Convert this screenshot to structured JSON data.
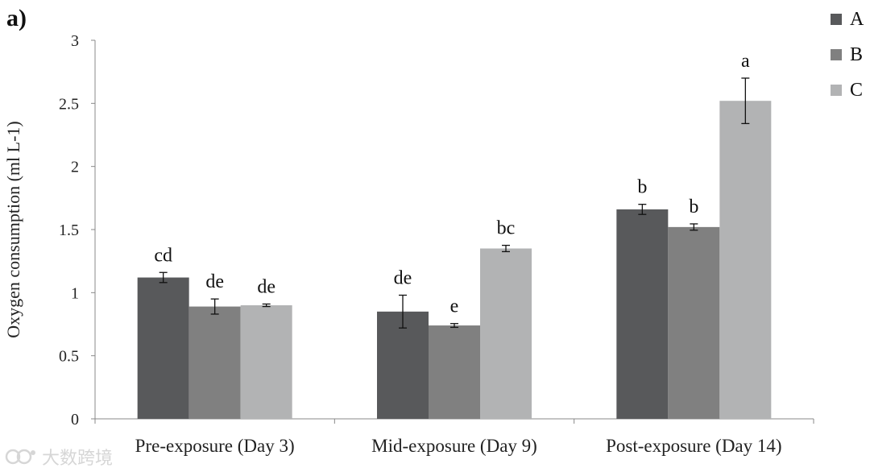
{
  "panel_label": "a)",
  "chart_data": {
    "type": "bar",
    "title": "",
    "xlabel": "",
    "ylabel": "Oxygen consumption (ml L-1)",
    "ylim": [
      0,
      3
    ],
    "yticks": [
      0,
      0.5,
      1,
      1.5,
      2,
      2.5,
      3
    ],
    "ytick_labels": [
      "0",
      "0.5",
      "1",
      "1.5",
      "2",
      "2.5",
      "3"
    ],
    "grid": false,
    "legend_position": "top-right",
    "categories": [
      "Pre-exposure (Day 3)",
      "Mid-exposure (Day 9)",
      "Post-exposure (Day 14)"
    ],
    "series": [
      {
        "name": "A",
        "color": "#58595b",
        "values": [
          1.12,
          0.85,
          1.66
        ],
        "errors": [
          0.04,
          0.13,
          0.04
        ],
        "letters": [
          "cd",
          "de",
          "b"
        ]
      },
      {
        "name": "B",
        "color": "#808080",
        "values": [
          0.89,
          0.74,
          1.52
        ],
        "errors": [
          0.06,
          0.015,
          0.025
        ],
        "letters": [
          "de",
          "e",
          "b"
        ]
      },
      {
        "name": "C",
        "color": "#b2b3b4",
        "values": [
          0.9,
          1.35,
          2.52
        ],
        "errors": [
          0.01,
          0.025,
          0.18
        ],
        "letters": [
          "de",
          "bc",
          "a"
        ]
      }
    ]
  },
  "watermark": {
    "text": "大数跨境"
  }
}
